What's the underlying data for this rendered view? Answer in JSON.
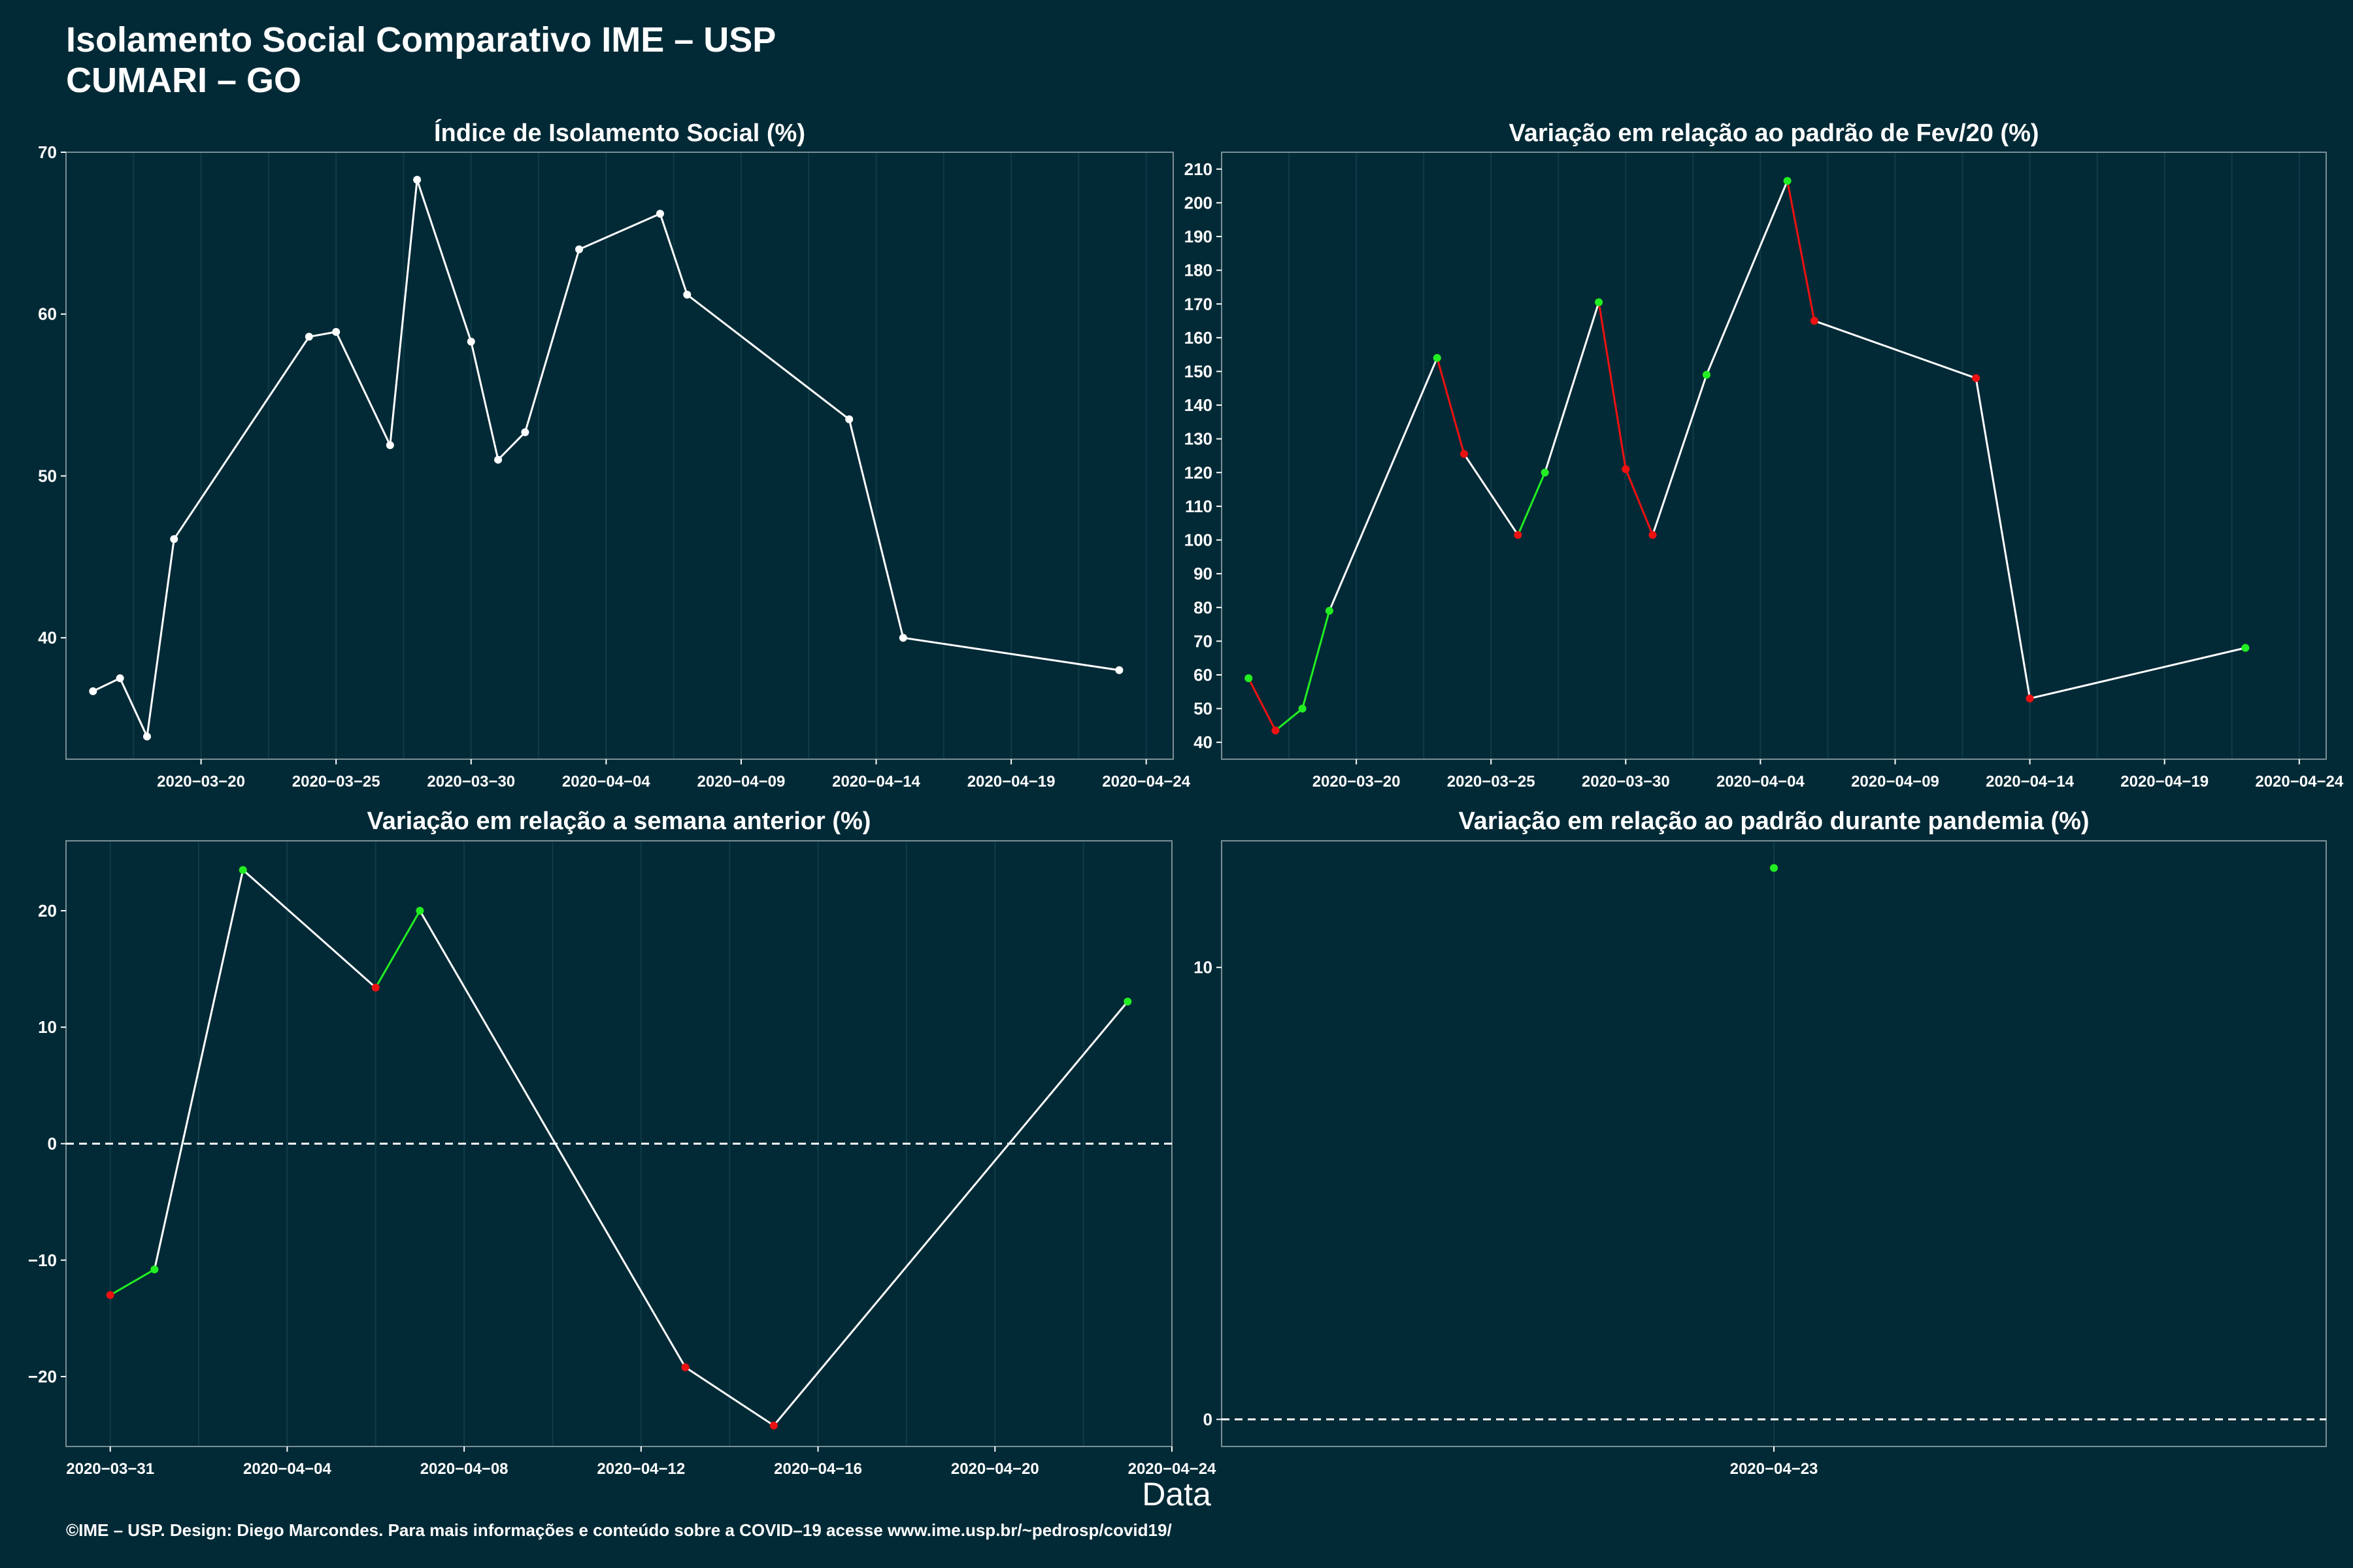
{
  "title": "Isolamento Social Comparativo IME – USP",
  "subtitle": "CUMARI – GO",
  "x_axis_title": "Data",
  "caption": "©IME – USP. Design: Diego Marcondes. Para mais informações e conteúdo sobre a COVID–19 acesse www.ime.usp.br/~pedrosp/covid19/",
  "colors": {
    "background": "#022a36",
    "line": "#ffffff",
    "increase": "#22ee22",
    "decrease": "#ee1111",
    "panel_border": "#7a8f96",
    "grid": "#0f3b47"
  },
  "chart_data": [
    {
      "type": "line",
      "title": "Índice de Isolamento Social (%)",
      "xlim": [
        "2020-03-15",
        "2020-04-25"
      ],
      "ylim": [
        32.5,
        70
      ],
      "yticks": [
        40,
        50,
        60,
        70
      ],
      "xticks": [
        "2020-03-20",
        "2020-03-25",
        "2020-03-30",
        "2020-04-04",
        "2020-04-09",
        "2020-04-14",
        "2020-04-19",
        "2020-04-24"
      ],
      "xtick_labels": [
        "2020−03−20",
        "2020−03−25",
        "2020−03−30",
        "2020−04−04",
        "2020−04−09",
        "2020−04−14",
        "2020−04−19",
        "2020−04−24"
      ],
      "reference_line": null,
      "grid": true,
      "points": [
        {
          "x": "2020-03-16",
          "y": 36.7
        },
        {
          "x": "2020-03-17",
          "y": 37.5
        },
        {
          "x": "2020-03-18",
          "y": 33.9
        },
        {
          "x": "2020-03-19",
          "y": 46.1
        },
        {
          "x": "2020-03-24",
          "y": 58.6
        },
        {
          "x": "2020-03-25",
          "y": 58.9
        },
        {
          "x": "2020-03-27",
          "y": 51.9
        },
        {
          "x": "2020-03-28",
          "y": 68.3
        },
        {
          "x": "2020-03-30",
          "y": 58.3
        },
        {
          "x": "2020-03-31",
          "y": 51.0
        },
        {
          "x": "2020-04-01",
          "y": 52.7
        },
        {
          "x": "2020-04-03",
          "y": 64.0
        },
        {
          "x": "2020-04-06",
          "y": 66.2
        },
        {
          "x": "2020-04-07",
          "y": 61.2
        },
        {
          "x": "2020-04-13",
          "y": 53.5
        },
        {
          "x": "2020-04-15",
          "y": 40.0
        },
        {
          "x": "2020-04-23",
          "y": 38.0
        }
      ]
    },
    {
      "type": "line",
      "title": "Variação em relação ao padrão de Fev/20 (%)",
      "xlim": [
        "2020-03-15",
        "2020-04-25"
      ],
      "ylim": [
        35,
        215
      ],
      "yticks": [
        40,
        50,
        60,
        70,
        80,
        90,
        100,
        110,
        120,
        130,
        140,
        150,
        160,
        170,
        180,
        190,
        200,
        210
      ],
      "xticks": [
        "2020-03-20",
        "2020-03-25",
        "2020-03-30",
        "2020-04-04",
        "2020-04-09",
        "2020-04-14",
        "2020-04-19",
        "2020-04-24"
      ],
      "xtick_labels": [
        "2020−03−20",
        "2020−03−25",
        "2020−03−30",
        "2020−04−04",
        "2020−04−09",
        "2020−04−14",
        "2020−04−19",
        "2020−04−24"
      ],
      "reference_line": null,
      "grid": true,
      "points": [
        {
          "x": "2020-03-16",
          "y": 59
        },
        {
          "x": "2020-03-17",
          "y": 43.5
        },
        {
          "x": "2020-03-18",
          "y": 50
        },
        {
          "x": "2020-03-19",
          "y": 79
        },
        {
          "x": "2020-03-23",
          "y": 154
        },
        {
          "x": "2020-03-24",
          "y": 125.5
        },
        {
          "x": "2020-03-26",
          "y": 101.5
        },
        {
          "x": "2020-03-27",
          "y": 120
        },
        {
          "x": "2020-03-29",
          "y": 170.5
        },
        {
          "x": "2020-03-30",
          "y": 121
        },
        {
          "x": "2020-03-31",
          "y": 101.5
        },
        {
          "x": "2020-04-02",
          "y": 149
        },
        {
          "x": "2020-04-05",
          "y": 206.5
        },
        {
          "x": "2020-04-06",
          "y": 165
        },
        {
          "x": "2020-04-12",
          "y": 148
        },
        {
          "x": "2020-04-14",
          "y": 53
        },
        {
          "x": "2020-04-22",
          "y": 68
        }
      ]
    },
    {
      "type": "line",
      "title": "Variação em relação a semana anterior (%)",
      "xlim": [
        "2020-03-30",
        "2020-04-24"
      ],
      "ylim": [
        -26,
        26
      ],
      "yticks": [
        -20,
        -10,
        0,
        10,
        20
      ],
      "ytick_labels": [
        "−20",
        "−10",
        "0",
        "10",
        "20"
      ],
      "xticks": [
        "2020-03-31",
        "2020-04-04",
        "2020-04-08",
        "2020-04-12",
        "2020-04-16",
        "2020-04-20",
        "2020-04-24"
      ],
      "xtick_labels": [
        "2020−03−31",
        "2020−04−04",
        "2020−04−08",
        "2020−04−12",
        "2020−04−16",
        "2020−04−20",
        "2020−04−24"
      ],
      "reference_line": 0,
      "grid": true,
      "points": [
        {
          "x": "2020-03-31",
          "y": -13.0
        },
        {
          "x": "2020-04-01",
          "y": -10.8
        },
        {
          "x": "2020-04-03",
          "y": 23.5
        },
        {
          "x": "2020-04-06",
          "y": 13.4
        },
        {
          "x": "2020-04-07",
          "y": 20.0
        },
        {
          "x": "2020-04-13",
          "y": -19.2
        },
        {
          "x": "2020-04-15",
          "y": -24.2
        },
        {
          "x": "2020-04-23",
          "y": 12.2
        }
      ]
    },
    {
      "type": "scatter",
      "title": "Variação em relação ao padrão durante pandemia (%)",
      "xlim": [
        "2020-04-22",
        "2020-04-24"
      ],
      "ylim": [
        -0.6,
        12.8
      ],
      "yticks": [
        0,
        10
      ],
      "xticks": [
        "2020-04-23"
      ],
      "xtick_labels": [
        "2020−04−23"
      ],
      "reference_line": 0,
      "grid": true,
      "points": [
        {
          "x": "2020-04-23",
          "y": 12.2
        }
      ]
    }
  ]
}
